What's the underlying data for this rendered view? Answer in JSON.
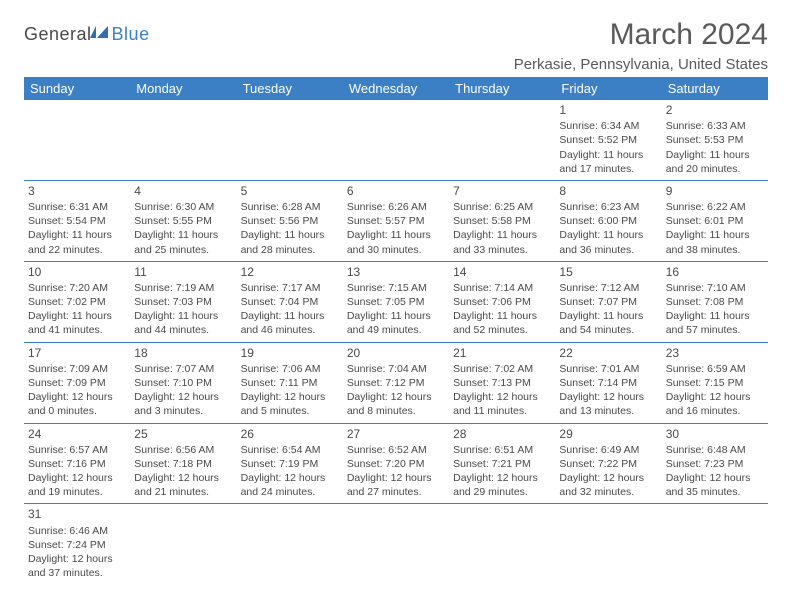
{
  "logo": {
    "general": "General",
    "blue": "Blue"
  },
  "title": "March 2024",
  "location": "Perkasie, Pennsylvania, United States",
  "colors": {
    "header_bg": "#3b7fc4",
    "header_text": "#ffffff",
    "body_text": "#4a4a4a",
    "page_bg": "#ffffff",
    "rule": "#3b7fc4"
  },
  "weekdays": [
    "Sunday",
    "Monday",
    "Tuesday",
    "Wednesday",
    "Thursday",
    "Friday",
    "Saturday"
  ],
  "first_weekday_index": 5,
  "days": [
    {
      "n": 1,
      "sunrise": "6:34 AM",
      "sunset": "5:52 PM",
      "daylight": "11 hours and 17 minutes."
    },
    {
      "n": 2,
      "sunrise": "6:33 AM",
      "sunset": "5:53 PM",
      "daylight": "11 hours and 20 minutes."
    },
    {
      "n": 3,
      "sunrise": "6:31 AM",
      "sunset": "5:54 PM",
      "daylight": "11 hours and 22 minutes."
    },
    {
      "n": 4,
      "sunrise": "6:30 AM",
      "sunset": "5:55 PM",
      "daylight": "11 hours and 25 minutes."
    },
    {
      "n": 5,
      "sunrise": "6:28 AM",
      "sunset": "5:56 PM",
      "daylight": "11 hours and 28 minutes."
    },
    {
      "n": 6,
      "sunrise": "6:26 AM",
      "sunset": "5:57 PM",
      "daylight": "11 hours and 30 minutes."
    },
    {
      "n": 7,
      "sunrise": "6:25 AM",
      "sunset": "5:58 PM",
      "daylight": "11 hours and 33 minutes."
    },
    {
      "n": 8,
      "sunrise": "6:23 AM",
      "sunset": "6:00 PM",
      "daylight": "11 hours and 36 minutes."
    },
    {
      "n": 9,
      "sunrise": "6:22 AM",
      "sunset": "6:01 PM",
      "daylight": "11 hours and 38 minutes."
    },
    {
      "n": 10,
      "sunrise": "7:20 AM",
      "sunset": "7:02 PM",
      "daylight": "11 hours and 41 minutes."
    },
    {
      "n": 11,
      "sunrise": "7:19 AM",
      "sunset": "7:03 PM",
      "daylight": "11 hours and 44 minutes."
    },
    {
      "n": 12,
      "sunrise": "7:17 AM",
      "sunset": "7:04 PM",
      "daylight": "11 hours and 46 minutes."
    },
    {
      "n": 13,
      "sunrise": "7:15 AM",
      "sunset": "7:05 PM",
      "daylight": "11 hours and 49 minutes."
    },
    {
      "n": 14,
      "sunrise": "7:14 AM",
      "sunset": "7:06 PM",
      "daylight": "11 hours and 52 minutes."
    },
    {
      "n": 15,
      "sunrise": "7:12 AM",
      "sunset": "7:07 PM",
      "daylight": "11 hours and 54 minutes."
    },
    {
      "n": 16,
      "sunrise": "7:10 AM",
      "sunset": "7:08 PM",
      "daylight": "11 hours and 57 minutes."
    },
    {
      "n": 17,
      "sunrise": "7:09 AM",
      "sunset": "7:09 PM",
      "daylight": "12 hours and 0 minutes."
    },
    {
      "n": 18,
      "sunrise": "7:07 AM",
      "sunset": "7:10 PM",
      "daylight": "12 hours and 3 minutes."
    },
    {
      "n": 19,
      "sunrise": "7:06 AM",
      "sunset": "7:11 PM",
      "daylight": "12 hours and 5 minutes."
    },
    {
      "n": 20,
      "sunrise": "7:04 AM",
      "sunset": "7:12 PM",
      "daylight": "12 hours and 8 minutes."
    },
    {
      "n": 21,
      "sunrise": "7:02 AM",
      "sunset": "7:13 PM",
      "daylight": "12 hours and 11 minutes."
    },
    {
      "n": 22,
      "sunrise": "7:01 AM",
      "sunset": "7:14 PM",
      "daylight": "12 hours and 13 minutes."
    },
    {
      "n": 23,
      "sunrise": "6:59 AM",
      "sunset": "7:15 PM",
      "daylight": "12 hours and 16 minutes."
    },
    {
      "n": 24,
      "sunrise": "6:57 AM",
      "sunset": "7:16 PM",
      "daylight": "12 hours and 19 minutes."
    },
    {
      "n": 25,
      "sunrise": "6:56 AM",
      "sunset": "7:18 PM",
      "daylight": "12 hours and 21 minutes."
    },
    {
      "n": 26,
      "sunrise": "6:54 AM",
      "sunset": "7:19 PM",
      "daylight": "12 hours and 24 minutes."
    },
    {
      "n": 27,
      "sunrise": "6:52 AM",
      "sunset": "7:20 PM",
      "daylight": "12 hours and 27 minutes."
    },
    {
      "n": 28,
      "sunrise": "6:51 AM",
      "sunset": "7:21 PM",
      "daylight": "12 hours and 29 minutes."
    },
    {
      "n": 29,
      "sunrise": "6:49 AM",
      "sunset": "7:22 PM",
      "daylight": "12 hours and 32 minutes."
    },
    {
      "n": 30,
      "sunrise": "6:48 AM",
      "sunset": "7:23 PM",
      "daylight": "12 hours and 35 minutes."
    },
    {
      "n": 31,
      "sunrise": "6:46 AM",
      "sunset": "7:24 PM",
      "daylight": "12 hours and 37 minutes."
    }
  ],
  "labels": {
    "sunrise": "Sunrise:",
    "sunset": "Sunset:",
    "daylight": "Daylight:"
  }
}
